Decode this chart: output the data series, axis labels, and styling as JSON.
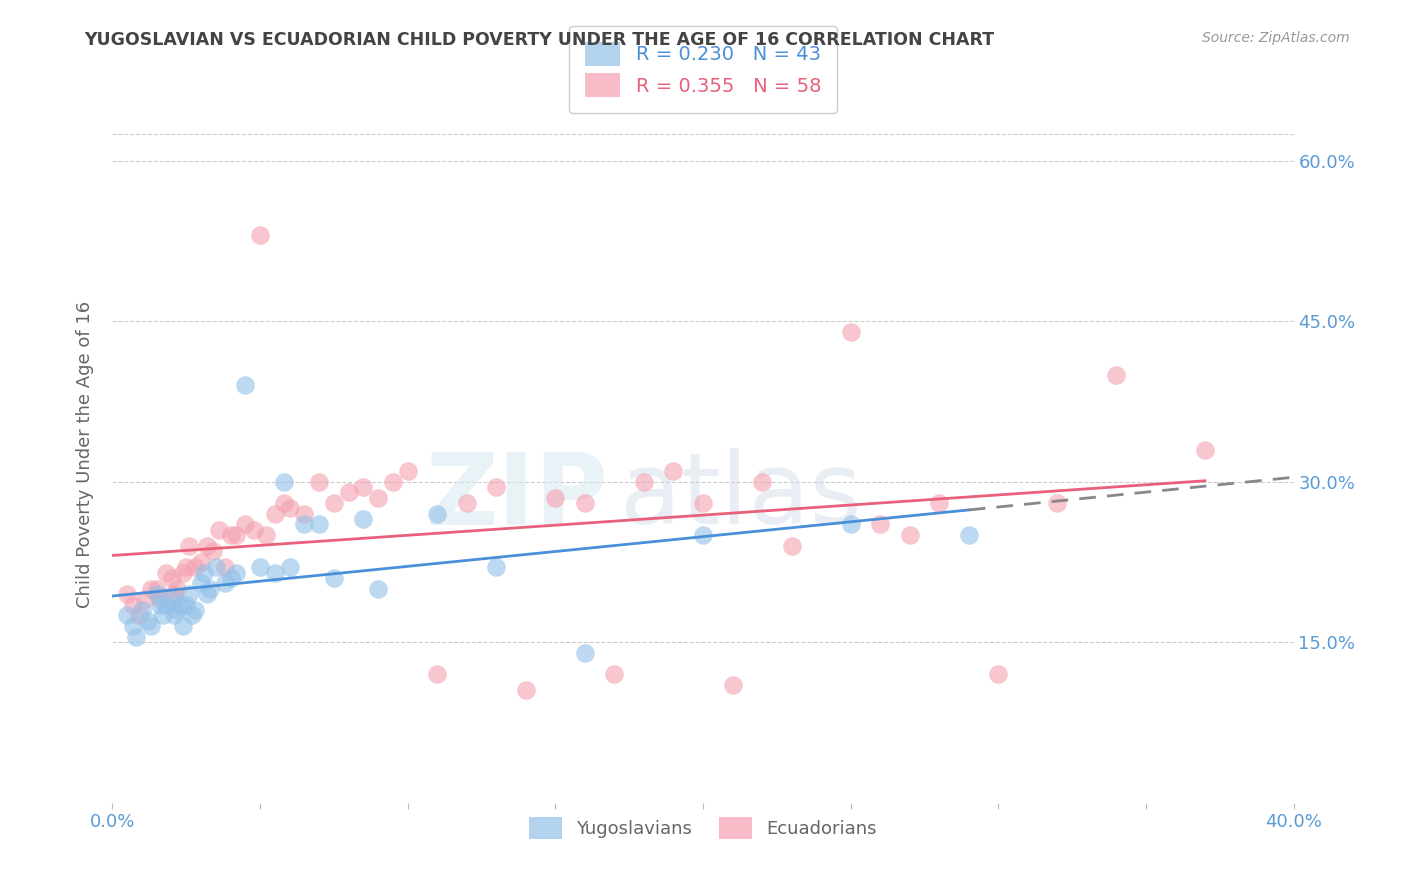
{
  "title": "YUGOSLAVIAN VS ECUADORIAN CHILD POVERTY UNDER THE AGE OF 16 CORRELATION CHART",
  "source": "Source: ZipAtlas.com",
  "ylabel": "Child Poverty Under the Age of 16",
  "xlim": [
    0.0,
    0.4
  ],
  "ylim": [
    0.0,
    0.65
  ],
  "yticks": [
    0.15,
    0.3,
    0.45,
    0.6
  ],
  "ytick_labels": [
    "15.0%",
    "30.0%",
    "45.0%",
    "60.0%"
  ],
  "xticks": [
    0.0,
    0.05,
    0.1,
    0.15,
    0.2,
    0.25,
    0.3,
    0.35,
    0.4
  ],
  "xtick_labels": [
    "0.0%",
    "",
    "",
    "",
    "",
    "",
    "",
    "",
    "40.0%"
  ],
  "blue_R": 0.23,
  "blue_N": 43,
  "pink_R": 0.355,
  "pink_N": 58,
  "blue_color": "#92C0E8",
  "pink_color": "#F4A0B0",
  "blue_line_color": "#4A90D9",
  "pink_line_color": "#E8607A",
  "legend_label_blue": "Yugoslavians",
  "legend_label_pink": "Ecuadorians",
  "watermark_zip": "ZIP",
  "watermark_atlas": "atlas",
  "background_color": "#ffffff",
  "grid_color": "#cccccc",
  "axis_label_color": "#5B9BD5",
  "title_color": "#444444",
  "ylabel_color": "#666666",
  "blue_scatter_x": [
    0.005,
    0.007,
    0.008,
    0.01,
    0.012,
    0.013,
    0.015,
    0.016,
    0.017,
    0.018,
    0.02,
    0.021,
    0.022,
    0.023,
    0.024,
    0.025,
    0.026,
    0.027,
    0.028,
    0.03,
    0.031,
    0.032,
    0.033,
    0.035,
    0.038,
    0.04,
    0.042,
    0.045,
    0.05,
    0.055,
    0.058,
    0.06,
    0.065,
    0.07,
    0.075,
    0.085,
    0.09,
    0.11,
    0.13,
    0.16,
    0.2,
    0.25,
    0.29
  ],
  "blue_scatter_y": [
    0.175,
    0.165,
    0.155,
    0.18,
    0.17,
    0.165,
    0.195,
    0.185,
    0.175,
    0.185,
    0.19,
    0.175,
    0.18,
    0.185,
    0.165,
    0.185,
    0.195,
    0.175,
    0.18,
    0.205,
    0.215,
    0.195,
    0.2,
    0.22,
    0.205,
    0.21,
    0.215,
    0.39,
    0.22,
    0.215,
    0.3,
    0.22,
    0.26,
    0.26,
    0.21,
    0.265,
    0.2,
    0.27,
    0.22,
    0.14,
    0.25,
    0.26,
    0.25
  ],
  "pink_scatter_x": [
    0.005,
    0.007,
    0.009,
    0.011,
    0.013,
    0.015,
    0.016,
    0.018,
    0.02,
    0.021,
    0.022,
    0.024,
    0.025,
    0.026,
    0.028,
    0.03,
    0.032,
    0.034,
    0.036,
    0.038,
    0.04,
    0.042,
    0.045,
    0.048,
    0.05,
    0.052,
    0.055,
    0.058,
    0.06,
    0.065,
    0.07,
    0.075,
    0.08,
    0.085,
    0.09,
    0.095,
    0.1,
    0.11,
    0.12,
    0.13,
    0.14,
    0.15,
    0.16,
    0.17,
    0.18,
    0.19,
    0.2,
    0.21,
    0.22,
    0.23,
    0.25,
    0.26,
    0.27,
    0.28,
    0.3,
    0.32,
    0.34,
    0.37
  ],
  "pink_scatter_y": [
    0.195,
    0.185,
    0.175,
    0.19,
    0.2,
    0.2,
    0.19,
    0.215,
    0.21,
    0.195,
    0.2,
    0.215,
    0.22,
    0.24,
    0.22,
    0.225,
    0.24,
    0.235,
    0.255,
    0.22,
    0.25,
    0.25,
    0.26,
    0.255,
    0.53,
    0.25,
    0.27,
    0.28,
    0.275,
    0.27,
    0.3,
    0.28,
    0.29,
    0.295,
    0.285,
    0.3,
    0.31,
    0.12,
    0.28,
    0.295,
    0.105,
    0.285,
    0.28,
    0.12,
    0.3,
    0.31,
    0.28,
    0.11,
    0.3,
    0.24,
    0.44,
    0.26,
    0.25,
    0.28,
    0.12,
    0.28,
    0.4,
    0.33
  ]
}
